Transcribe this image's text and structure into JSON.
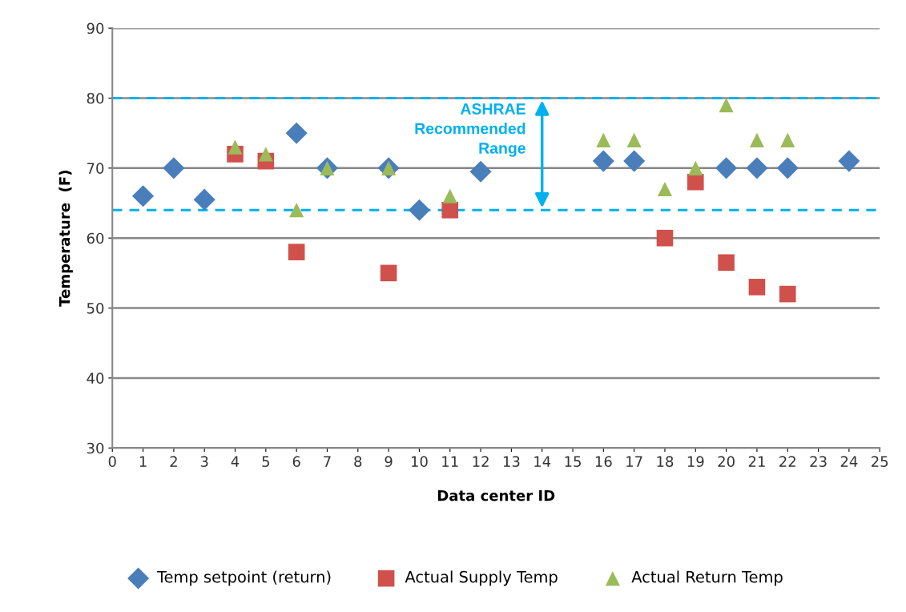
{
  "chart_data": {
    "type": "scatter",
    "xlabel": "Data center ID",
    "ylabel": "Temperature  (F)",
    "xlim": [
      0,
      25
    ],
    "xticks": [
      0,
      1,
      2,
      3,
      4,
      5,
      6,
      7,
      8,
      9,
      10,
      11,
      12,
      13,
      14,
      15,
      16,
      17,
      18,
      19,
      20,
      21,
      22,
      23,
      24,
      25
    ],
    "ylim": [
      30,
      90
    ],
    "yticks": [
      30,
      40,
      50,
      60,
      70,
      80,
      90
    ],
    "grid": "y",
    "legend": "bottom",
    "series": [
      {
        "name": "Temp setpoint (return)",
        "color": "#4a7ebb",
        "marker": "diamond",
        "x": [
          1,
          2,
          3,
          6,
          7,
          9,
          10,
          12,
          16,
          17,
          20,
          21,
          22,
          24
        ],
        "values": [
          66,
          70,
          65.5,
          75,
          70,
          70,
          64,
          69.5,
          71,
          71,
          70,
          70,
          70,
          71
        ]
      },
      {
        "name": "Actual Supply Temp",
        "color": "#d0504b",
        "marker": "square",
        "x": [
          4,
          5,
          6,
          9,
          11,
          18,
          19,
          20,
          21,
          22
        ],
        "values": [
          72,
          71,
          58,
          55,
          64,
          60,
          68,
          56.5,
          53,
          52
        ]
      },
      {
        "name": "Actual Return Temp",
        "color": "#9bbb59",
        "marker": "triangle",
        "x": [
          4,
          5,
          6,
          7,
          9,
          11,
          16,
          17,
          18,
          19,
          20,
          21,
          22
        ],
        "values": [
          73,
          72,
          64,
          70,
          70,
          66,
          74,
          74,
          67,
          70,
          79,
          74,
          74
        ]
      }
    ],
    "ref_lines": [
      {
        "axis": "y",
        "value": 80,
        "color": "#00b0f0",
        "line_style": "dashed"
      },
      {
        "axis": "y",
        "value": 64,
        "color": "#00b0f0",
        "line_style": "dashed"
      }
    ],
    "annotations": [
      "ASHRAE\nRecommended\nRange"
    ]
  }
}
